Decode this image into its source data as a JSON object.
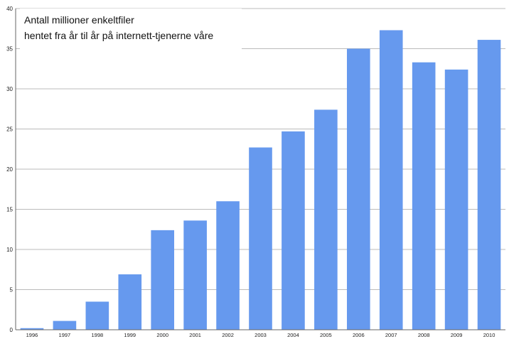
{
  "chart_data": {
    "type": "bar",
    "title_lines": [
      "Antall millioner enkeltfiler",
      "hentet fra år til år på internett-tjenerne våre"
    ],
    "xlabel": "",
    "ylabel": "",
    "categories": [
      "1996",
      "1997",
      "1998",
      "1999",
      "2000",
      "2001",
      "2002",
      "2003",
      "2004",
      "2005",
      "2006",
      "2007",
      "2008",
      "2009",
      "2010"
    ],
    "values": [
      0.2,
      1.1,
      3.5,
      6.9,
      12.4,
      13.6,
      16.0,
      22.7,
      24.7,
      27.4,
      35.0,
      37.3,
      33.3,
      32.4,
      36.1
    ],
    "ylim": [
      0,
      40
    ],
    "yticks": [
      0,
      5,
      10,
      15,
      20,
      25,
      30,
      35,
      40
    ],
    "grid": true,
    "legend": "none",
    "bar_color": "#6699EE",
    "grid_color": "#bbbbbb",
    "axis_color": "#666666"
  }
}
